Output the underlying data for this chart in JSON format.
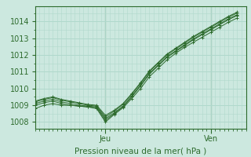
{
  "xlabel": "Pression niveau de la mer( hPa )",
  "bg_color": "#cce8df",
  "grid_color": "#b0d8cc",
  "line_color": "#2d6b2d",
  "tick_color": "#2d6b2d",
  "label_color": "#2d6b2d",
  "ylim": [
    1007.6,
    1014.9
  ],
  "yticks": [
    1008,
    1009,
    1010,
    1011,
    1012,
    1013,
    1014
  ],
  "x_jeu": 8,
  "x_ven": 20,
  "xlim": [
    0,
    24
  ],
  "series": [
    [
      1008.8,
      1009.0,
      1009.1,
      1009.0,
      1009.0,
      1008.95,
      1008.9,
      1008.8,
      1008.0,
      1008.45,
      1008.85,
      1009.4,
      1010.0,
      1010.7,
      1011.2,
      1011.7,
      1012.1,
      1012.45,
      1012.75,
      1013.05,
      1013.35,
      1013.65,
      1013.95,
      1014.2
    ],
    [
      1009.0,
      1009.15,
      1009.25,
      1009.1,
      1009.0,
      1008.95,
      1008.9,
      1008.85,
      1008.1,
      1008.5,
      1008.9,
      1009.5,
      1010.15,
      1010.85,
      1011.35,
      1011.85,
      1012.2,
      1012.55,
      1012.9,
      1013.2,
      1013.5,
      1013.8,
      1014.1,
      1014.35
    ],
    [
      1009.1,
      1009.25,
      1009.35,
      1009.2,
      1009.1,
      1009.0,
      1008.95,
      1008.9,
      1008.2,
      1008.55,
      1008.95,
      1009.55,
      1010.2,
      1010.9,
      1011.4,
      1011.9,
      1012.25,
      1012.6,
      1012.95,
      1013.25,
      1013.55,
      1013.85,
      1014.15,
      1014.4
    ],
    [
      1009.2,
      1009.35,
      1009.45,
      1009.3,
      1009.2,
      1009.1,
      1009.0,
      1008.95,
      1008.3,
      1008.65,
      1009.05,
      1009.65,
      1010.3,
      1011.0,
      1011.5,
      1012.0,
      1012.35,
      1012.7,
      1013.05,
      1013.35,
      1013.65,
      1013.95,
      1014.25,
      1014.5
    ],
    [
      1009.25,
      1009.4,
      1009.5,
      1009.35,
      1009.25,
      1009.15,
      1009.05,
      1009.0,
      1008.4,
      1008.7,
      1009.1,
      1009.7,
      1010.35,
      1011.05,
      1011.55,
      1012.05,
      1012.4,
      1012.75,
      1013.1,
      1013.4,
      1013.7,
      1014.0,
      1014.3,
      1014.55
    ]
  ]
}
